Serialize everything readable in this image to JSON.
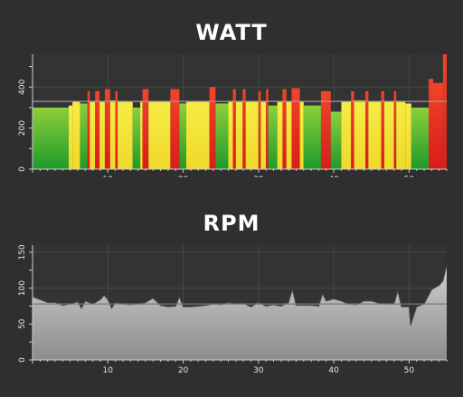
{
  "chart_data": [
    {
      "type": "bar",
      "title": "WATT",
      "xlabel": "",
      "ylabel": "",
      "xlim": [
        0,
        55
      ],
      "ylim": [
        0,
        560
      ],
      "x_ticks": [
        10,
        20,
        30,
        40,
        50
      ],
      "y_ticks": [
        0,
        200,
        400
      ],
      "reference_line": 330,
      "grid": true,
      "colors": {
        "green": "#3fae2b",
        "yellow": "#f2e234",
        "red": "#e2261e",
        "reference": "#9a9a9a"
      },
      "segments": [
        {
          "x0": 0.0,
          "x1": 4.8,
          "zone": "green",
          "value": 300
        },
        {
          "x0": 4.8,
          "x1": 5.3,
          "zone": "yellow",
          "value": 310
        },
        {
          "x0": 5.3,
          "x1": 6.3,
          "zone": "yellow",
          "value": 330
        },
        {
          "x0": 6.3,
          "x1": 7.3,
          "zone": "green",
          "value": 320
        },
        {
          "x0": 7.3,
          "x1": 7.6,
          "zone": "red",
          "value": 380
        },
        {
          "x0": 7.6,
          "x1": 8.3,
          "zone": "yellow",
          "value": 330
        },
        {
          "x0": 8.3,
          "x1": 8.9,
          "zone": "red",
          "value": 380
        },
        {
          "x0": 8.9,
          "x1": 9.6,
          "zone": "yellow",
          "value": 330
        },
        {
          "x0": 9.6,
          "x1": 10.3,
          "zone": "red",
          "value": 390
        },
        {
          "x0": 10.3,
          "x1": 11.0,
          "zone": "yellow",
          "value": 335
        },
        {
          "x0": 11.0,
          "x1": 11.3,
          "zone": "red",
          "value": 380
        },
        {
          "x0": 11.3,
          "x1": 13.3,
          "zone": "yellow",
          "value": 330
        },
        {
          "x0": 13.3,
          "x1": 14.3,
          "zone": "green",
          "value": 300
        },
        {
          "x0": 14.3,
          "x1": 14.6,
          "zone": "yellow",
          "value": 330
        },
        {
          "x0": 14.6,
          "x1": 15.4,
          "zone": "red",
          "value": 390
        },
        {
          "x0": 15.4,
          "x1": 18.3,
          "zone": "yellow",
          "value": 330
        },
        {
          "x0": 18.3,
          "x1": 19.5,
          "zone": "red",
          "value": 390
        },
        {
          "x0": 19.5,
          "x1": 20.4,
          "zone": "green",
          "value": 320
        },
        {
          "x0": 20.4,
          "x1": 23.5,
          "zone": "yellow",
          "value": 330
        },
        {
          "x0": 23.5,
          "x1": 24.3,
          "zone": "red",
          "value": 400
        },
        {
          "x0": 24.3,
          "x1": 26.0,
          "zone": "green",
          "value": 320
        },
        {
          "x0": 26.0,
          "x1": 26.6,
          "zone": "yellow",
          "value": 330
        },
        {
          "x0": 26.6,
          "x1": 27.0,
          "zone": "red",
          "value": 390
        },
        {
          "x0": 27.0,
          "x1": 27.9,
          "zone": "yellow",
          "value": 330
        },
        {
          "x0": 27.9,
          "x1": 28.3,
          "zone": "red",
          "value": 390
        },
        {
          "x0": 28.3,
          "x1": 30.0,
          "zone": "yellow",
          "value": 330
        },
        {
          "x0": 30.0,
          "x1": 30.3,
          "zone": "red",
          "value": 380
        },
        {
          "x0": 30.3,
          "x1": 31.0,
          "zone": "yellow",
          "value": 330
        },
        {
          "x0": 31.0,
          "x1": 31.3,
          "zone": "red",
          "value": 390
        },
        {
          "x0": 31.3,
          "x1": 32.5,
          "zone": "green",
          "value": 310
        },
        {
          "x0": 32.5,
          "x1": 33.2,
          "zone": "yellow",
          "value": 330
        },
        {
          "x0": 33.2,
          "x1": 33.7,
          "zone": "red",
          "value": 390
        },
        {
          "x0": 33.7,
          "x1": 34.4,
          "zone": "yellow",
          "value": 330
        },
        {
          "x0": 34.4,
          "x1": 35.5,
          "zone": "red",
          "value": 395
        },
        {
          "x0": 35.5,
          "x1": 36.0,
          "zone": "yellow",
          "value": 330
        },
        {
          "x0": 36.0,
          "x1": 38.3,
          "zone": "green",
          "value": 310
        },
        {
          "x0": 38.3,
          "x1": 39.6,
          "zone": "red",
          "value": 380
        },
        {
          "x0": 39.6,
          "x1": 41.0,
          "zone": "green",
          "value": 280
        },
        {
          "x0": 41.0,
          "x1": 42.3,
          "zone": "yellow",
          "value": 330
        },
        {
          "x0": 42.3,
          "x1": 42.7,
          "zone": "red",
          "value": 380
        },
        {
          "x0": 42.7,
          "x1": 44.2,
          "zone": "yellow",
          "value": 335
        },
        {
          "x0": 44.2,
          "x1": 44.6,
          "zone": "red",
          "value": 380
        },
        {
          "x0": 44.6,
          "x1": 46.3,
          "zone": "yellow",
          "value": 330
        },
        {
          "x0": 46.3,
          "x1": 46.7,
          "zone": "red",
          "value": 380
        },
        {
          "x0": 46.7,
          "x1": 48.0,
          "zone": "yellow",
          "value": 330
        },
        {
          "x0": 48.0,
          "x1": 48.3,
          "zone": "red",
          "value": 380
        },
        {
          "x0": 48.3,
          "x1": 49.5,
          "zone": "yellow",
          "value": 330
        },
        {
          "x0": 49.5,
          "x1": 50.3,
          "zone": "yellow",
          "value": 320
        },
        {
          "x0": 50.3,
          "x1": 52.6,
          "zone": "green",
          "value": 300
        },
        {
          "x0": 52.6,
          "x1": 53.2,
          "zone": "red",
          "value": 440
        },
        {
          "x0": 53.2,
          "x1": 54.5,
          "zone": "red",
          "value": 420
        },
        {
          "x0": 54.5,
          "x1": 55.0,
          "zone": "red",
          "value": 560
        }
      ]
    },
    {
      "type": "area",
      "title": "RPM",
      "xlabel": "",
      "ylabel": "",
      "xlim": [
        0,
        55
      ],
      "ylim": [
        0,
        160
      ],
      "x_ticks": [
        10,
        20,
        30,
        40,
        50
      ],
      "y_ticks": [
        0,
        50,
        100,
        150
      ],
      "reference_line": 78,
      "grid": true,
      "colors": {
        "fill_top": "#cfcfcf",
        "fill_bottom": "#8c8c8c",
        "reference": "#777777"
      },
      "series": [
        {
          "x": [
            0,
            1,
            2,
            3,
            4,
            5,
            6,
            6.5,
            7,
            8,
            9,
            9.5,
            10,
            10.5,
            11,
            12,
            13,
            14,
            15,
            16,
            17,
            18,
            19,
            19.5,
            20,
            21,
            22,
            23,
            24,
            25,
            26,
            27,
            28,
            29,
            30,
            31,
            32,
            33,
            34,
            34.5,
            35,
            36,
            37,
            38,
            38.5,
            39,
            40,
            41,
            42,
            43,
            44,
            45,
            46,
            47,
            48,
            48.5,
            49,
            50,
            50.2,
            51,
            52,
            53,
            54,
            54.5,
            55
          ],
          "y": [
            88,
            84,
            80,
            80,
            76,
            78,
            81,
            72,
            82,
            78,
            84,
            90,
            84,
            72,
            80,
            78,
            77,
            78,
            80,
            86,
            76,
            74,
            75,
            88,
            74,
            74,
            75,
            76,
            78,
            77,
            80,
            78,
            79,
            74,
            80,
            75,
            77,
            75,
            80,
            98,
            76,
            76,
            76,
            75,
            92,
            82,
            85,
            82,
            78,
            77,
            82,
            82,
            79,
            78,
            78,
            96,
            74,
            74,
            48,
            74,
            78,
            98,
            104,
            110,
            132
          ]
        }
      ]
    }
  ]
}
